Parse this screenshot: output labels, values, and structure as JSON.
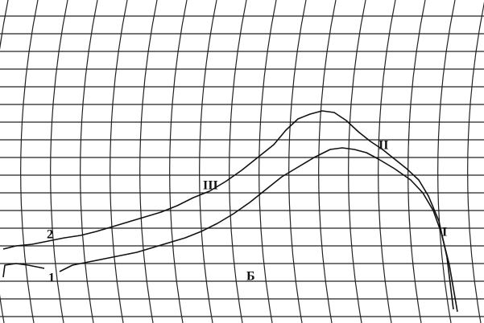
{
  "labels": {
    "curve_2": "2",
    "curve_1": "1",
    "peak_3": "III",
    "peak_2": "II",
    "peak_1": "I",
    "marker": "Б"
  }
}
